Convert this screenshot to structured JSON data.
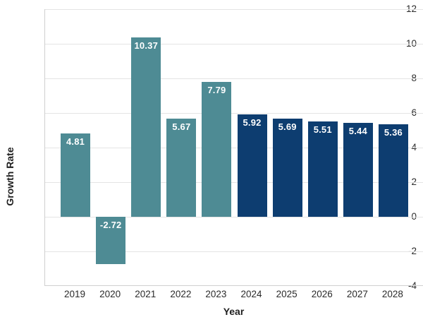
{
  "chart_data": {
    "type": "bar",
    "title": "",
    "xlabel": "Year",
    "ylabel": "Growth Rate",
    "categories": [
      "2019",
      "2020",
      "2021",
      "2022",
      "2023",
      "2024",
      "2025",
      "2026",
      "2027",
      "2028"
    ],
    "values": [
      4.81,
      -2.72,
      10.37,
      5.67,
      7.79,
      5.92,
      5.69,
      5.51,
      5.44,
      5.36
    ],
    "value_labels": [
      "4.81",
      "-2.72",
      "10.37",
      "5.67",
      "7.79",
      "5.92",
      "5.69",
      "5.51",
      "5.44",
      "5.36"
    ],
    "bar_colors": [
      "#4e8b94",
      "#4e8b94",
      "#4e8b94",
      "#4e8b94",
      "#4e8b94",
      "#0d3d70",
      "#0d3d70",
      "#0d3d70",
      "#0d3d70",
      "#0d3d70"
    ],
    "ylim": [
      -4,
      12
    ],
    "yticks": [
      12,
      10,
      8,
      6,
      4,
      2,
      0,
      -2,
      -4
    ],
    "grid": "horizontal",
    "legend": "none",
    "colors": {
      "historical_bar": "#4e8b94",
      "forecast_bar": "#0d3d70",
      "gridline": "#e4e4e4",
      "spine": "#cfcfcf",
      "tick_label": "#2b2b2b",
      "value_label": "#ffffff"
    }
  }
}
